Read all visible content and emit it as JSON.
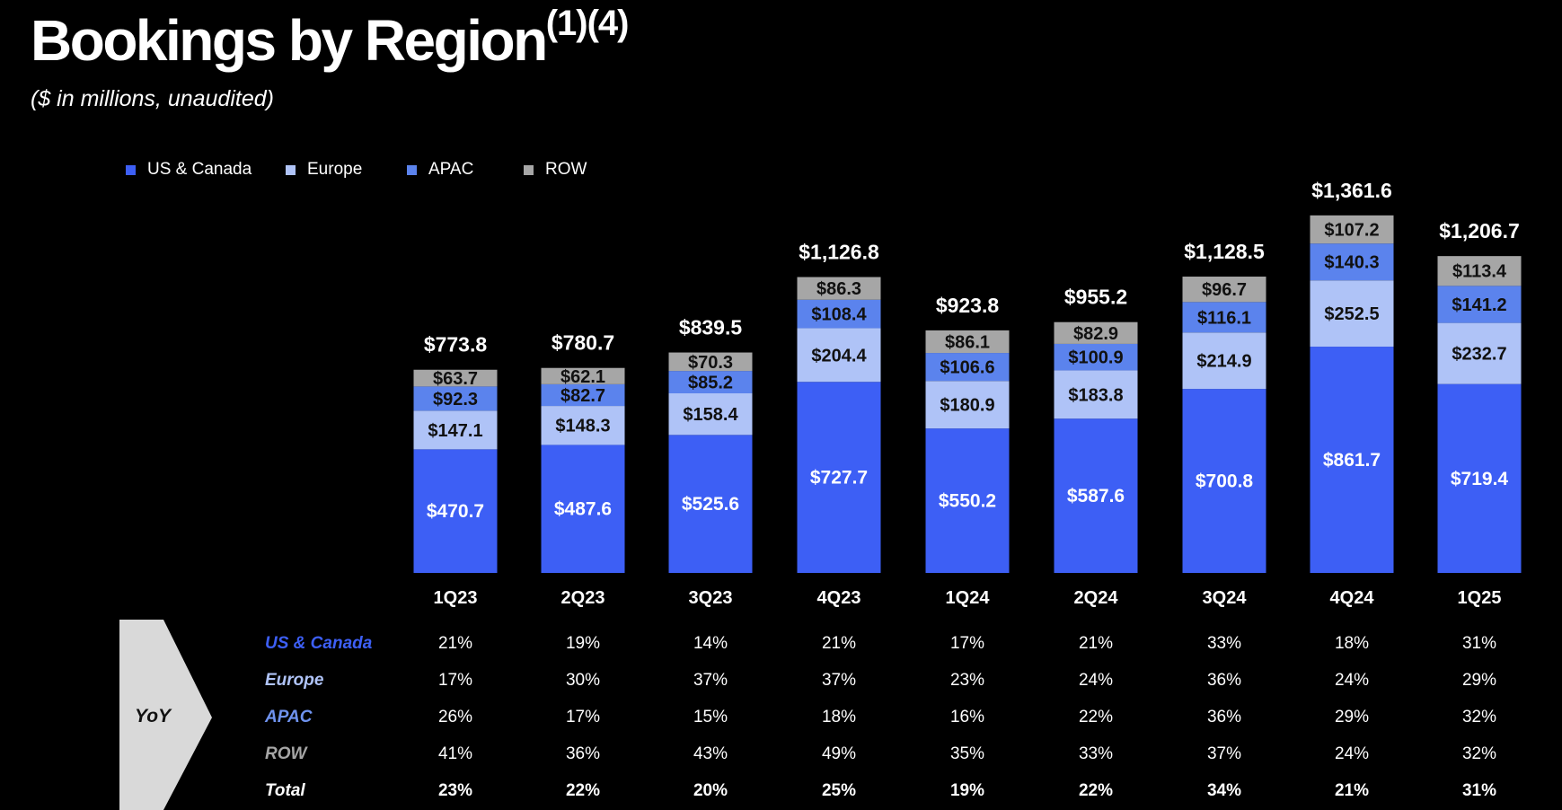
{
  "title": "Bookings by Region",
  "title_superscript": "(1)(4)",
  "subtitle": "($ in millions, unaudited)",
  "colors": {
    "background": "#000000",
    "us_canada": "#3d5ff5",
    "europe": "#afc3f7",
    "apac": "#5b83ed",
    "row": "#a6a6a6"
  },
  "legend": [
    {
      "label": "US & Canada",
      "color": "#3d5ff5"
    },
    {
      "label": "Europe",
      "color": "#afc3f7"
    },
    {
      "label": "APAC",
      "color": "#5b83ed"
    },
    {
      "label": "ROW",
      "color": "#a6a6a6"
    }
  ],
  "chart_data": {
    "type": "bar",
    "stacked": true,
    "categories": [
      "1Q23",
      "2Q23",
      "3Q23",
      "4Q23",
      "1Q24",
      "2Q24",
      "3Q24",
      "4Q24",
      "1Q25"
    ],
    "series": [
      {
        "name": "US & Canada",
        "color": "#3d5ff5",
        "values": [
          470.7,
          487.6,
          525.6,
          727.7,
          550.2,
          587.6,
          700.8,
          861.7,
          719.4
        ],
        "labels": [
          "$470.7",
          "$487.6",
          "$525.6",
          "$727.7",
          "$550.2",
          "$587.6",
          "$700.8",
          "$861.7",
          "$719.4"
        ]
      },
      {
        "name": "Europe",
        "color": "#afc3f7",
        "values": [
          147.1,
          148.3,
          158.4,
          204.4,
          180.9,
          183.8,
          214.9,
          252.5,
          232.7
        ],
        "labels": [
          "$147.1",
          "$148.3",
          "$158.4",
          "$204.4",
          "$180.9",
          "$183.8",
          "$214.9",
          "$252.5",
          "$232.7"
        ]
      },
      {
        "name": "APAC",
        "color": "#5b83ed",
        "values": [
          92.3,
          82.7,
          85.2,
          108.4,
          106.6,
          100.9,
          116.1,
          140.3,
          141.2
        ],
        "labels": [
          "$92.3",
          "$82.7",
          "$85.2",
          "$108.4",
          "$106.6",
          "$100.9",
          "$116.1",
          "$140.3",
          "$141.2"
        ]
      },
      {
        "name": "ROW",
        "color": "#a6a6a6",
        "values": [
          63.7,
          62.1,
          70.3,
          86.3,
          86.1,
          82.9,
          96.7,
          107.2,
          113.4
        ],
        "labels": [
          "$63.7",
          "$62.1",
          "$70.3",
          "$86.3",
          "$86.1",
          "$82.9",
          "$96.7",
          "$107.2",
          "$113.4"
        ]
      }
    ],
    "totals": [
      773.8,
      780.7,
      839.5,
      1126.8,
      923.8,
      955.2,
      1128.5,
      1361.6,
      1206.7
    ],
    "total_labels": [
      "$773.8",
      "$780.7",
      "$839.5",
      "$1,126.8",
      "$923.8",
      "$955.2",
      "$1,128.5",
      "$1,361.6",
      "$1,206.7"
    ],
    "legend_position": "top-left",
    "grid": false
  },
  "yoy": {
    "label": "YoY",
    "rows": [
      {
        "name": "US & Canada",
        "color": "#3d5ff5",
        "values": [
          "21%",
          "19%",
          "14%",
          "21%",
          "17%",
          "21%",
          "33%",
          "18%",
          "31%"
        ]
      },
      {
        "name": "Europe",
        "color": "#afc3f7",
        "values": [
          "17%",
          "30%",
          "37%",
          "37%",
          "23%",
          "24%",
          "36%",
          "24%",
          "29%"
        ]
      },
      {
        "name": "APAC",
        "color": "#6f93f0",
        "values": [
          "26%",
          "17%",
          "15%",
          "18%",
          "16%",
          "22%",
          "36%",
          "29%",
          "32%"
        ]
      },
      {
        "name": "ROW",
        "color": "#a6a6a6",
        "values": [
          "41%",
          "36%",
          "43%",
          "49%",
          "35%",
          "33%",
          "37%",
          "24%",
          "32%"
        ]
      },
      {
        "name": "Total",
        "color": "#ffffff",
        "values": [
          "23%",
          "22%",
          "20%",
          "25%",
          "19%",
          "22%",
          "34%",
          "21%",
          "31%"
        ]
      }
    ]
  }
}
